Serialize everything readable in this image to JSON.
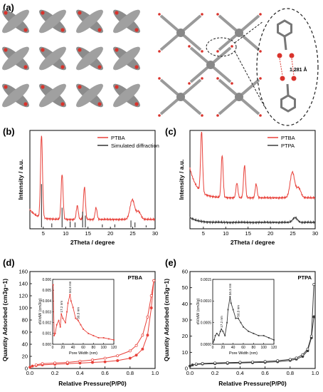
{
  "panels": {
    "a": {
      "label": "(a)",
      "bond_length": "1.281 Å"
    },
    "b": {
      "label": "(b)"
    },
    "c": {
      "label": "(c)"
    },
    "d": {
      "label": "(d)"
    },
    "e": {
      "label": "(e)"
    }
  },
  "colors": {
    "ptba": "#e8413a",
    "ptpa": "#3a3a3a",
    "simulated": "#333333"
  },
  "chart_data": [
    {
      "id": "b",
      "type": "line",
      "xlabel": "2Theta / degree",
      "ylabel": "Intensity / a.u.",
      "xlim": [
        2,
        30
      ],
      "xticks": [
        "5",
        "10",
        "15",
        "20",
        "25",
        "30"
      ],
      "legend": "top-right",
      "series": [
        {
          "name": "PTBA",
          "peaks": [
            [
              4.6,
              0.84
            ],
            [
              9.2,
              0.46
            ],
            [
              12.6,
              0.14
            ],
            [
              14.2,
              0.33
            ],
            [
              16.8,
              0.12
            ],
            [
              24.9,
              0.2
            ],
            [
              26.3,
              0.08
            ]
          ],
          "baseline": 0.1
        },
        {
          "name": "Simulated diffraction",
          "sticks": [
            [
              4.6,
              0.44
            ],
            [
              6.9,
              0.04
            ],
            [
              9.2,
              0.2
            ],
            [
              11.0,
              0.06
            ],
            [
              12.1,
              0.05
            ],
            [
              13.8,
              0.16
            ],
            [
              14.4,
              0.12
            ],
            [
              18.2,
              0.03
            ],
            [
              21.0,
              0.03
            ],
            [
              24.6,
              0.07
            ],
            [
              25.5,
              0.05
            ],
            [
              28.0,
              0.02
            ]
          ]
        }
      ]
    },
    {
      "id": "c",
      "type": "line",
      "xlabel": "2Theta / degree",
      "ylabel": "Intensity / a.u.",
      "xlim": [
        2,
        30
      ],
      "xticks": [
        "5",
        "10",
        "15",
        "20",
        "25",
        "30"
      ],
      "legend": "top-right",
      "series": [
        {
          "name": "PTBA",
          "peaks": [
            [
              4.6,
              0.62
            ],
            [
              9.2,
              0.43
            ],
            [
              12.5,
              0.15
            ],
            [
              14.2,
              0.33
            ],
            [
              16.8,
              0.14
            ],
            [
              24.9,
              0.26
            ],
            [
              26.3,
              0.1
            ]
          ],
          "baseline": 0.3
        },
        {
          "name": "PTPA",
          "peaks": [
            [
              25.5,
              0.05
            ]
          ],
          "baseline": 0.05
        }
      ]
    },
    {
      "id": "d",
      "type": "scatter",
      "title": "PTBA",
      "xlabel": "Relative Pressure(P/P0)",
      "ylabel": "Quantity Adsorbed (cm3g−1)",
      "xlim": [
        0.0,
        1.0
      ],
      "ylim": [
        0,
        160
      ],
      "xticks": [
        "0.0",
        "0.2",
        "0.4",
        "0.6",
        "0.8",
        "1.0"
      ],
      "yticks": [
        "0",
        "20",
        "40",
        "60",
        "80",
        "100",
        "120",
        "140",
        "160"
      ],
      "series": [
        {
          "name": "adsorption",
          "x": [
            0.0,
            0.02,
            0.05,
            0.1,
            0.2,
            0.3,
            0.4,
            0.5,
            0.6,
            0.7,
            0.8,
            0.85,
            0.9,
            0.94,
            0.97,
            0.99
          ],
          "y": [
            2,
            4,
            5,
            6,
            7,
            8,
            9,
            10,
            11,
            13,
            17,
            22,
            32,
            55,
            100,
            145
          ]
        },
        {
          "name": "desorption",
          "x": [
            0.99,
            0.97,
            0.94,
            0.9,
            0.85,
            0.8,
            0.7,
            0.6,
            0.5,
            0.4,
            0.3,
            0.2,
            0.1,
            0.05
          ],
          "y": [
            145,
            120,
            85,
            55,
            38,
            29,
            21,
            17,
            14,
            12,
            10,
            9,
            8,
            6
          ]
        }
      ],
      "inset": {
        "xlabel": "Pore Width (nm)",
        "ylabel": "dV/dW (cm3/g)",
        "xlim": [
          0,
          120
        ],
        "ylim": [
          0,
          0.006
        ],
        "xticks": [
          "0",
          "20",
          "40",
          "60",
          "80",
          "100",
          "120"
        ],
        "yticks": [
          "0.000",
          "0.001",
          "0.002",
          "0.003",
          "0.004",
          "0.005",
          "0.006"
        ],
        "annotations": [
          "17.2 nm",
          "34.3 nm",
          "50.3 nm"
        ],
        "x": [
          1,
          3,
          5,
          8,
          12,
          15,
          17,
          20,
          25,
          28,
          30,
          34,
          36,
          40,
          45,
          50,
          55,
          60,
          70,
          80,
          90,
          100,
          110,
          120
        ],
        "y": [
          0.0055,
          0.0008,
          0.001,
          0.0018,
          0.0022,
          0.0016,
          0.0028,
          0.0024,
          0.002,
          0.003,
          0.0038,
          0.0046,
          0.004,
          0.0034,
          0.0024,
          0.0022,
          0.0018,
          0.0014,
          0.001,
          0.0008,
          0.0006,
          0.0006,
          0.0005,
          0.0004
        ]
      }
    },
    {
      "id": "e",
      "type": "scatter",
      "title": "PTPA",
      "xlabel": "Relative Pressure(P/P0)",
      "ylabel": "Quantity Adsorbed (cm3g−1)",
      "xlim": [
        0.0,
        1.0
      ],
      "ylim": [
        0,
        60
      ],
      "xticks": [
        "0.0",
        "0.2",
        "0.4",
        "0.6",
        "0.8",
        "1.0"
      ],
      "yticks": [
        "0",
        "10",
        "20",
        "30",
        "40",
        "50",
        "60"
      ],
      "series": [
        {
          "name": "adsorption",
          "x": [
            0.0,
            0.02,
            0.05,
            0.1,
            0.2,
            0.3,
            0.4,
            0.5,
            0.6,
            0.7,
            0.8,
            0.85,
            0.9,
            0.94,
            0.97,
            0.99
          ],
          "y": [
            1.5,
            2.2,
            2.5,
            2.8,
            3.0,
            3.2,
            3.4,
            3.6,
            3.8,
            4.2,
            5.0,
            5.8,
            7.5,
            11,
            19,
            32
          ]
        },
        {
          "name": "desorption",
          "x": [
            0.99,
            0.97,
            0.94,
            0.9,
            0.85,
            0.8,
            0.7,
            0.6,
            0.5,
            0.4,
            0.3,
            0.2,
            0.1,
            0.05
          ],
          "y": [
            52,
            20,
            12,
            8.5,
            6.5,
            5.6,
            4.8,
            4.3,
            4.0,
            3.8,
            3.6,
            3.4,
            3.1,
            2.8
          ]
        }
      ],
      "inset": {
        "xlabel": "Pore Width (nm)",
        "ylabel": "dV/dW (cm3/g)",
        "xlim": [
          0,
          120
        ],
        "ylim": [
          0,
          0.0015
        ],
        "xticks": [
          "0",
          "20",
          "40",
          "60",
          "80",
          "100",
          "120"
        ],
        "yticks": [
          "0.0000",
          "0.0005",
          "0.0010",
          "0.0015"
        ],
        "annotations": [
          "17.2 nm",
          "34.3 nm",
          "50.3 nm"
        ],
        "x": [
          1,
          3,
          5,
          8,
          12,
          15,
          17,
          20,
          24,
          28,
          30,
          34,
          36,
          40,
          45,
          50,
          55,
          60,
          70,
          80,
          90,
          100,
          110,
          120
        ],
        "y": [
          5e-05,
          0.0001,
          0.0002,
          0.00025,
          0.0002,
          0.0003,
          0.00035,
          0.0003,
          0.0002,
          0.0005,
          0.0008,
          0.0011,
          0.00095,
          0.0008,
          0.0006,
          0.0006,
          0.0005,
          0.0004,
          0.0003,
          0.00025,
          0.0002,
          0.0002,
          0.00015,
          0.0001
        ]
      }
    }
  ]
}
